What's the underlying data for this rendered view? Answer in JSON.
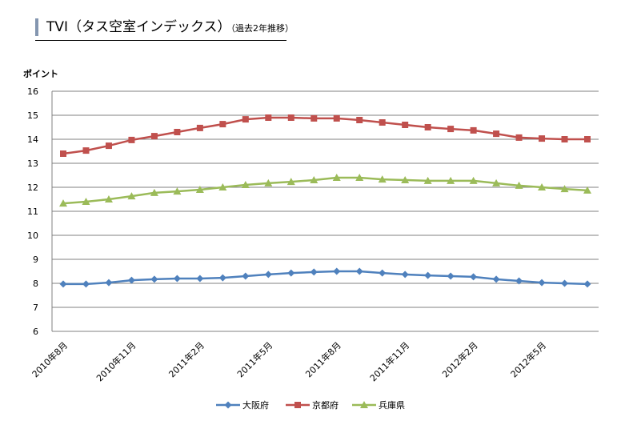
{
  "title": {
    "main": "TVI（タス空室インデックス）",
    "sub": "（過去2年推移）"
  },
  "colors": {
    "title_bar": "#8496b0",
    "grid": "#808080",
    "osaka": "#4f81bd",
    "kyoto": "#c0504d",
    "hyogo": "#9bbb59"
  },
  "chart_data": {
    "type": "line",
    "ylabel": "ポイント",
    "xlabel": "",
    "ylim": [
      6,
      16
    ],
    "yticks": [
      "6",
      "7",
      "8",
      "9",
      "10",
      "11",
      "12",
      "13",
      "14",
      "15",
      "16"
    ],
    "grid": true,
    "legend_position": "bottom",
    "x": [
      "2010年8月",
      "2010年9月",
      "2010年10月",
      "2010年11月",
      "2010年12月",
      "2011年1月",
      "2011年2月",
      "2011年3月",
      "2011年4月",
      "2011年5月",
      "2011年6月",
      "2011年7月",
      "2011年8月",
      "2011年9月",
      "2011年10月",
      "2011年11月",
      "2011年12月",
      "2012年1月",
      "2012年2月",
      "2012年3月",
      "2012年4月",
      "2012年5月",
      "2012年6月",
      "2012年7月"
    ],
    "xtick_labels": [
      {
        "index": 0,
        "label": "2010年8月"
      },
      {
        "index": 3,
        "label": "2010年11月"
      },
      {
        "index": 6,
        "label": "2011年2月"
      },
      {
        "index": 9,
        "label": "2011年5月"
      },
      {
        "index": 12,
        "label": "2011年8月"
      },
      {
        "index": 15,
        "label": "2011年11月"
      },
      {
        "index": 18,
        "label": "2012年2月"
      },
      {
        "index": 21,
        "label": "2012年5月"
      }
    ],
    "series": [
      {
        "name": "大阪府",
        "key": "osaka",
        "marker": "diamond",
        "values": [
          7.97,
          7.97,
          8.03,
          8.13,
          8.17,
          8.2,
          8.2,
          8.23,
          8.3,
          8.37,
          8.43,
          8.47,
          8.5,
          8.5,
          8.43,
          8.37,
          8.33,
          8.3,
          8.27,
          8.17,
          8.1,
          8.03,
          8.0,
          7.97
        ]
      },
      {
        "name": "京都府",
        "key": "kyoto",
        "marker": "square",
        "values": [
          13.4,
          13.53,
          13.73,
          13.97,
          14.13,
          14.3,
          14.47,
          14.63,
          14.83,
          14.9,
          14.9,
          14.87,
          14.87,
          14.8,
          14.7,
          14.6,
          14.5,
          14.43,
          14.37,
          14.23,
          14.07,
          14.03,
          14.0,
          14.0
        ]
      },
      {
        "name": "兵庫県",
        "key": "hyogo",
        "marker": "triangle",
        "values": [
          11.33,
          11.4,
          11.5,
          11.63,
          11.77,
          11.83,
          11.9,
          12.0,
          12.1,
          12.17,
          12.23,
          12.3,
          12.4,
          12.4,
          12.33,
          12.3,
          12.27,
          12.27,
          12.27,
          12.17,
          12.07,
          12.0,
          11.93,
          11.87
        ]
      }
    ]
  }
}
